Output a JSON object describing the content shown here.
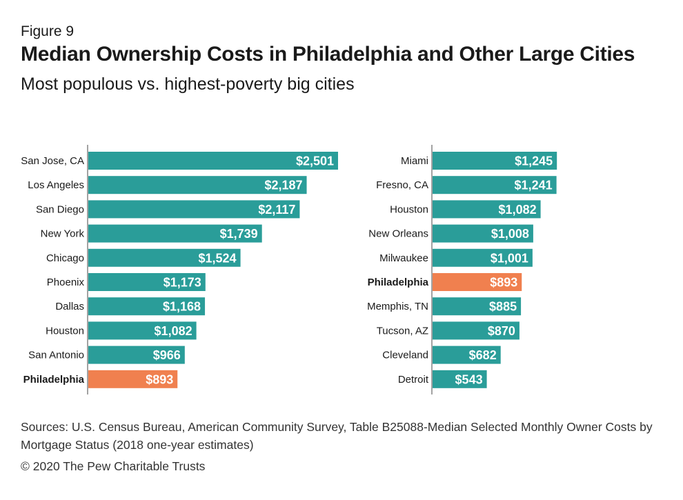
{
  "figure_label": "Figure 9",
  "title": "Median Ownership Costs in Philadelphia and Other Large Cities",
  "subtitle": "Most populous vs. highest-poverty big cities",
  "source": "Sources: U.S. Census Bureau, American Community Survey, Table B25088-Median Selected Monthly Owner Costs by Mortgage Status (2018 one-year estimates)",
  "copyright": "© 2020 The Pew Charitable Trusts",
  "colors": {
    "bar": "#2a9d99",
    "highlight": "#f0804f"
  },
  "chart_data": [
    {
      "type": "bar",
      "orientation": "horizontal",
      "categories": [
        "San Jose, CA",
        "Los Angeles",
        "San Diego",
        "New York",
        "Chicago",
        "Phoenix",
        "Dallas",
        "Houston",
        "San Antonio",
        "Philadelphia"
      ],
      "values": [
        2501,
        2187,
        2117,
        1739,
        1524,
        1173,
        1168,
        1082,
        966,
        893
      ],
      "value_labels": [
        "$2,501",
        "$2,187",
        "$2,117",
        "$1,739",
        "$1,524",
        "$1,173",
        "$1,168",
        "$1,082",
        "$966",
        "$893"
      ],
      "highlight": "Philadelphia",
      "xlim": [
        0,
        2501
      ]
    },
    {
      "type": "bar",
      "orientation": "horizontal",
      "categories": [
        "Miami",
        "Fresno, CA",
        "Houston",
        "New Orleans",
        "Milwaukee",
        "Philadelphia",
        "Memphis, TN",
        "Tucson, AZ",
        "Cleveland",
        "Detroit"
      ],
      "values": [
        1245,
        1241,
        1082,
        1008,
        1001,
        893,
        885,
        870,
        682,
        543
      ],
      "value_labels": [
        "$1,245",
        "$1,241",
        "$1,082",
        "$1,008",
        "$1,001",
        "$893",
        "$885",
        "$870",
        "$682",
        "$543"
      ],
      "highlight": "Philadelphia",
      "xlim": [
        0,
        2501
      ]
    }
  ]
}
